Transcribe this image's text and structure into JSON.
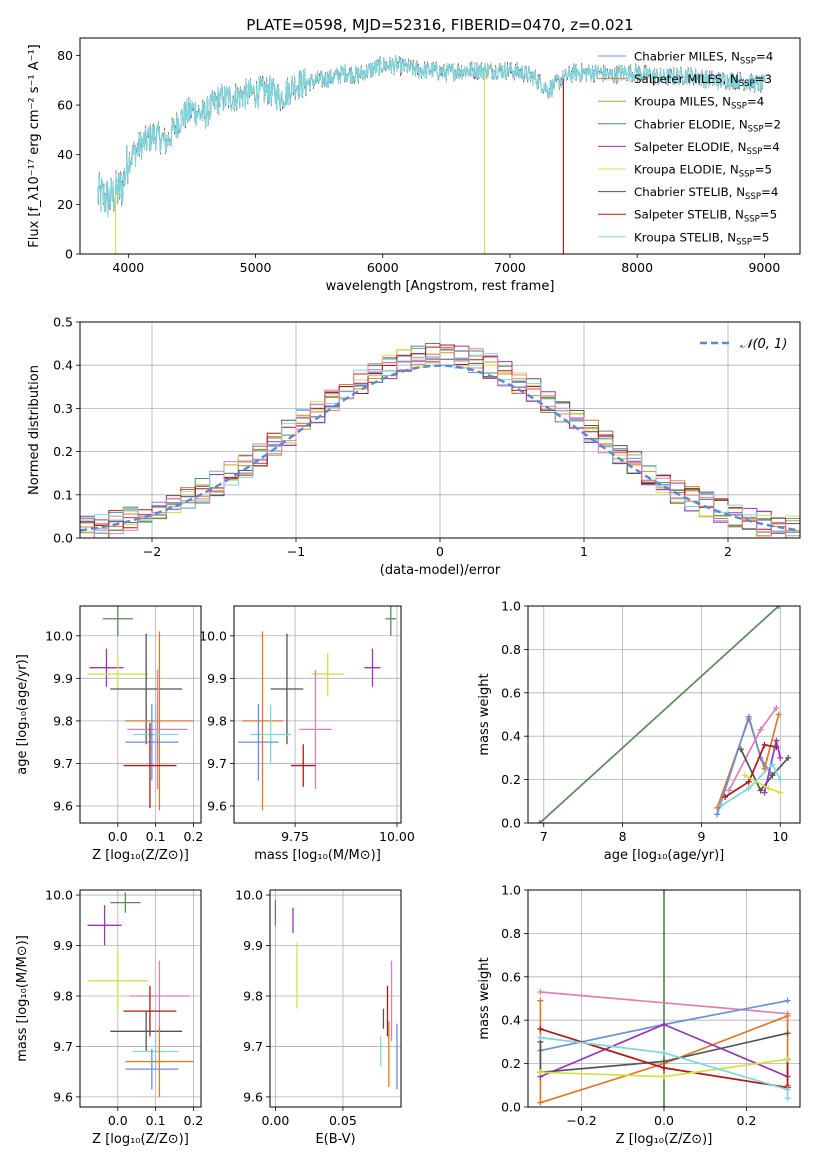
{
  "figure_title": "PLATE=0598, MJD=52316, FIBERID=0470, z=0.021",
  "colors": {
    "Chabrier MILES": "#6a8fd9",
    "Salpeter MILES": "#e07a26",
    "Kroupa MILES": "#c89a3a",
    "Chabrier ELODIE": "#5a8a5a",
    "Salpeter ELODIE": "#9b35b8",
    "Kroupa ELODIE": "#d4e04a",
    "Chabrier STELIB": "#555555",
    "Salpeter STELIB": "#b01818",
    "Kroupa STELIB": "#7fd6dc",
    "pink": "#e07fb0"
  },
  "chart_data": [
    {
      "id": "spectrum",
      "type": "line",
      "xlabel": "wavelength [Angstrom, rest frame]",
      "ylabel": "Flux [f_λ10⁻¹⁷ erg cm⁻² s⁻¹ A⁻¹]",
      "xlim": [
        3620,
        9280
      ],
      "ylim": [
        0,
        87
      ],
      "xticks": [
        4000,
        5000,
        6000,
        7000,
        8000,
        9000
      ],
      "yticks": [
        0,
        20,
        40,
        60,
        80
      ],
      "legend_position": "top-right",
      "legend": [
        {
          "name": "Chabrier MILES, N_SSP=4",
          "base": "Chabrier MILES, N",
          "sub": "SSP",
          "tail": "=4"
        },
        {
          "name": "Salpeter MILES, N_SSP=3",
          "base": "Salpeter MILES, N",
          "sub": "SSP",
          "tail": "=3"
        },
        {
          "name": "Kroupa MILES, N_SSP=4",
          "base": "Kroupa MILES, N",
          "sub": "SSP",
          "tail": "=4"
        },
        {
          "name": "Chabrier ELODIE, N_SSP=2",
          "base": "Chabrier ELODIE, N",
          "sub": "SSP",
          "tail": "=2"
        },
        {
          "name": "Salpeter ELODIE, N_SSP=4",
          "base": "Salpeter ELODIE, N",
          "sub": "SSP",
          "tail": "=4"
        },
        {
          "name": "Kroupa ELODIE, N_SSP=5",
          "base": "Kroupa ELODIE, N",
          "sub": "SSP",
          "tail": "=5"
        },
        {
          "name": "Chabrier STELIB, N_SSP=4",
          "base": "Chabrier STELIB, N",
          "sub": "SSP",
          "tail": "=4"
        },
        {
          "name": "Salpeter STELIB, N_SSP=5",
          "base": "Salpeter STELIB, N",
          "sub": "SSP",
          "tail": "=5"
        },
        {
          "name": "Kroupa STELIB, N_SSP=5",
          "base": "Kroupa STELIB, N",
          "sub": "SSP",
          "tail": "=5"
        }
      ],
      "continuum": {
        "x": [
          3760,
          3850,
          3950,
          4000,
          4100,
          4200,
          4300,
          4400,
          4500,
          4600,
          4700,
          4800,
          4900,
          5000,
          5100,
          5200,
          5300,
          5400,
          5500,
          5600,
          5700,
          5800,
          5900,
          6000,
          6100,
          6200,
          6300,
          6400,
          6500,
          6600,
          6700,
          6800,
          6900,
          7000,
          7100,
          7200,
          7300,
          7400,
          7500,
          7600,
          7700,
          7800,
          7900,
          8000,
          8200,
          8400,
          8600,
          8800,
          9000
        ],
        "y": [
          24,
          22,
          27,
          38,
          44,
          48,
          45,
          54,
          58,
          56,
          62,
          63,
          64,
          65,
          66,
          63,
          68,
          69,
          70,
          71,
          73,
          72,
          74,
          76,
          76,
          75,
          74,
          74,
          73,
          74,
          74,
          74,
          74,
          74,
          73,
          71,
          66,
          70,
          73,
          73,
          73,
          72,
          73,
          73,
          71,
          72,
          70,
          70,
          68
        ]
      },
      "spectrum_x_range": [
        3760,
        9010
      ],
      "dropouts": [
        {
          "x": 3900,
          "bottom": 0,
          "color": "Kroupa ELODIE"
        },
        {
          "x": 6800,
          "bottom": 0,
          "color": "Kroupa ELODIE"
        },
        {
          "x": 7420,
          "bottom": 0,
          "color": "Salpeter STELIB"
        }
      ]
    },
    {
      "id": "residuals",
      "type": "area",
      "xlabel": "(data-model)/error",
      "ylabel": "Normed distribution",
      "xlim": [
        -2.5,
        2.5
      ],
      "ylim": [
        0,
        0.5
      ],
      "xticks": [
        -2,
        -1,
        0,
        1,
        2
      ],
      "yticks": [
        0.0,
        0.1,
        0.2,
        0.3,
        0.4,
        0.5
      ],
      "grid": true,
      "bin_width": 0.1,
      "legend_label": "𝒩(0, 1)",
      "legend_position": "top-right"
    },
    {
      "id": "age_vs_Z",
      "type": "scatter",
      "xlabel": "Z [log₁₀(Z/Z⊙)]",
      "ylabel": "age  [log₁₀(age/yr)]",
      "xlim": [
        -0.1,
        0.22
      ],
      "ylim": [
        9.56,
        10.07
      ],
      "xticks": [
        0.0,
        0.1,
        0.2
      ],
      "yticks": [
        9.6,
        9.7,
        9.8,
        9.9,
        10.0
      ],
      "grid": true,
      "points": [
        {
          "color": "Chabrier ELODIE",
          "x": 0.0,
          "xerr": 0.04,
          "y": 10.04,
          "yerr": 0.04
        },
        {
          "color": "Salpeter ELODIE",
          "x": -0.03,
          "xerr": 0.045,
          "y": 9.925,
          "yerr": 0.045
        },
        {
          "color": "Kroupa ELODIE",
          "x": 0.0,
          "xerr": 0.08,
          "y": 9.91,
          "yerr": 0.04
        },
        {
          "color": "Chabrier STELIB",
          "x": 0.075,
          "xerr": 0.095,
          "y": 9.875,
          "yerr": 0.13
        },
        {
          "color": "Salpeter MILES",
          "x": 0.11,
          "xerr": 0.09,
          "y": 9.8,
          "yerr": 0.21
        },
        {
          "color": "pink",
          "x": 0.105,
          "xerr": 0.08,
          "y": 9.78,
          "yerr": 0.14
        },
        {
          "color": "Kroupa STELIB",
          "x": 0.1,
          "xerr": 0.06,
          "y": 9.768,
          "yerr": 0.07
        },
        {
          "color": "Chabrier MILES",
          "x": 0.09,
          "xerr": 0.07,
          "y": 9.75,
          "yerr": 0.09
        },
        {
          "color": "Salpeter STELIB",
          "x": 0.085,
          "xerr": 0.07,
          "y": 9.695,
          "yerr": 0.1
        }
      ]
    },
    {
      "id": "age_vs_mass",
      "type": "scatter",
      "xlabel": "mass [log₁₀(M/M⊙)]",
      "ylabel": "",
      "xlim": [
        9.6,
        10.01
      ],
      "ylim": [
        9.56,
        10.07
      ],
      "xticks": [
        9.75,
        10.0
      ],
      "yticks": [
        9.6,
        9.7,
        9.8,
        9.9,
        10.0
      ],
      "grid": true,
      "points": [
        {
          "color": "Chabrier ELODIE",
          "x": 9.985,
          "xerr": 0.013,
          "y": 10.04,
          "yerr": 0.04
        },
        {
          "color": "Salpeter ELODIE",
          "x": 9.94,
          "xerr": 0.02,
          "y": 9.925,
          "yerr": 0.045
        },
        {
          "color": "Kroupa ELODIE",
          "x": 9.83,
          "xerr": 0.04,
          "y": 9.91,
          "yerr": 0.05
        },
        {
          "color": "Chabrier STELIB",
          "x": 9.73,
          "xerr": 0.04,
          "y": 9.875,
          "yerr": 0.13
        },
        {
          "color": "Salpeter MILES",
          "x": 9.67,
          "xerr": 0.05,
          "y": 9.8,
          "yerr": 0.21
        },
        {
          "color": "pink",
          "x": 9.8,
          "xerr": 0.04,
          "y": 9.78,
          "yerr": 0.14
        },
        {
          "color": "Kroupa STELIB",
          "x": 9.69,
          "xerr": 0.05,
          "y": 9.768,
          "yerr": 0.07
        },
        {
          "color": "Chabrier MILES",
          "x": 9.66,
          "xerr": 0.05,
          "y": 9.75,
          "yerr": 0.09
        },
        {
          "color": "Salpeter STELIB",
          "x": 9.77,
          "xerr": 0.03,
          "y": 9.695,
          "yerr": 0.05
        }
      ]
    },
    {
      "id": "mass_weight_vs_age",
      "type": "line",
      "xlabel": "age  [log₁₀(age/yr)]",
      "ylabel": "mass weight",
      "xlim": [
        6.8,
        10.25
      ],
      "ylim": [
        0,
        1
      ],
      "xticks": [
        7,
        8,
        9,
        10
      ],
      "yticks": [
        0.0,
        0.2,
        0.4,
        0.6,
        0.8,
        1.0
      ],
      "grid": true,
      "series": [
        {
          "color": "Chabrier ELODIE",
          "x": [
            6.95,
            9.98
          ],
          "y": [
            0.0,
            1.0
          ]
        },
        {
          "color": "Salpeter MILES",
          "x": [
            9.2,
            9.6,
            9.8,
            9.98
          ],
          "y": [
            0.07,
            0.48,
            0.25,
            0.5
          ]
        },
        {
          "color": "Chabrier MILES",
          "x": [
            9.2,
            9.6,
            9.75,
            9.9
          ],
          "y": [
            0.04,
            0.49,
            0.3,
            0.22
          ]
        },
        {
          "color": "pink",
          "x": [
            9.35,
            9.75,
            9.95
          ],
          "y": [
            0.15,
            0.43,
            0.53
          ]
        },
        {
          "color": "Chabrier STELIB",
          "x": [
            9.5,
            9.75,
            9.9,
            10.1
          ],
          "y": [
            0.34,
            0.15,
            0.22,
            0.3
          ]
        },
        {
          "color": "Salpeter STELIB",
          "x": [
            9.3,
            9.6,
            9.8,
            9.95
          ],
          "y": [
            0.12,
            0.19,
            0.36,
            0.35
          ]
        },
        {
          "color": "Salpeter ELODIE",
          "x": [
            9.8,
            9.95,
            10.0
          ],
          "y": [
            0.14,
            0.38,
            0.3
          ]
        },
        {
          "color": "Kroupa ELODIE",
          "x": [
            9.55,
            9.85,
            10.0
          ],
          "y": [
            0.22,
            0.16,
            0.14
          ]
        },
        {
          "color": "Kroupa STELIB",
          "x": [
            9.25,
            9.6,
            9.9,
            10.0
          ],
          "y": [
            0.08,
            0.16,
            0.27,
            0.2
          ]
        }
      ]
    },
    {
      "id": "mass_vs_Z",
      "type": "scatter",
      "xlabel": "Z [log₁₀(Z/Z⊙)]",
      "ylabel": "mass [log₁₀(M/M⊙)]",
      "xlim": [
        -0.1,
        0.22
      ],
      "ylim": [
        9.58,
        10.01
      ],
      "xticks": [
        0.0,
        0.1,
        0.2
      ],
      "yticks": [
        9.6,
        9.7,
        9.8,
        9.9,
        10.0
      ],
      "grid": true,
      "points": [
        {
          "color": "Chabrier ELODIE",
          "x": 0.02,
          "xerr": 0.04,
          "y": 9.985,
          "yerr": 0.02
        },
        {
          "color": "Salpeter ELODIE",
          "x": -0.035,
          "xerr": 0.045,
          "y": 9.94,
          "yerr": 0.04
        },
        {
          "color": "Kroupa ELODIE",
          "x": 0.0,
          "xerr": 0.08,
          "y": 9.83,
          "yerr": 0.06
        },
        {
          "color": "pink",
          "x": 0.11,
          "xerr": 0.08,
          "y": 9.8,
          "yerr": 0.07
        },
        {
          "color": "Salpeter STELIB",
          "x": 0.085,
          "xerr": 0.07,
          "y": 9.77,
          "yerr": 0.05
        },
        {
          "color": "Chabrier STELIB",
          "x": 0.075,
          "xerr": 0.095,
          "y": 9.73,
          "yerr": 0.04
        },
        {
          "color": "Kroupa STELIB",
          "x": 0.1,
          "xerr": 0.06,
          "y": 9.69,
          "yerr": 0.04
        },
        {
          "color": "Salpeter MILES",
          "x": 0.11,
          "xerr": 0.09,
          "y": 9.67,
          "yerr": 0.07
        },
        {
          "color": "Chabrier MILES",
          "x": 0.09,
          "xerr": 0.07,
          "y": 9.655,
          "yerr": 0.04
        }
      ]
    },
    {
      "id": "mass_vs_EBV",
      "type": "scatter",
      "xlabel": "E(B-V)",
      "ylabel": "",
      "xlim": [
        -0.004,
        0.093
      ],
      "ylim": [
        9.58,
        10.01
      ],
      "xticks": [
        0.0,
        0.05
      ],
      "yticks": [
        9.6,
        9.7,
        9.8,
        9.9,
        10.0
      ],
      "grid": true,
      "points": [
        {
          "color": "Chabrier ELODIE",
          "x": 0.0,
          "xerr": 0,
          "y": 9.965,
          "yerr": 0.025
        },
        {
          "color": "Salpeter ELODIE",
          "x": 0.013,
          "xerr": 0,
          "y": 9.95,
          "yerr": 0.025
        },
        {
          "color": "Kroupa ELODIE",
          "x": 0.016,
          "xerr": 0,
          "y": 9.84,
          "yerr": 0.065
        },
        {
          "color": "pink",
          "x": 0.086,
          "xerr": 0,
          "y": 9.79,
          "yerr": 0.08
        },
        {
          "color": "Salpeter STELIB",
          "x": 0.083,
          "xerr": 0,
          "y": 9.77,
          "yerr": 0.05
        },
        {
          "color": "Chabrier STELIB",
          "x": 0.08,
          "xerr": 0,
          "y": 9.755,
          "yerr": 0.02
        },
        {
          "color": "Kroupa STELIB",
          "x": 0.078,
          "xerr": 0,
          "y": 9.69,
          "yerr": 0.03
        },
        {
          "color": "Salpeter MILES",
          "x": 0.084,
          "xerr": 0,
          "y": 9.685,
          "yerr": 0.065
        },
        {
          "color": "Chabrier MILES",
          "x": 0.09,
          "xerr": 0,
          "y": 9.68,
          "yerr": 0.065
        }
      ]
    },
    {
      "id": "mass_weight_vs_Z",
      "type": "line",
      "xlabel": "Z [log₁₀(Z/Z⊙)]",
      "ylabel": "mass weight",
      "xlim": [
        -0.33,
        0.33
      ],
      "ylim": [
        0,
        1
      ],
      "xticks": [
        -0.2,
        0.0,
        0.2
      ],
      "yticks": [
        0.0,
        0.2,
        0.4,
        0.6,
        0.8,
        1.0
      ],
      "grid": true,
      "series": [
        {
          "color": "Chabrier ELODIE",
          "x": [
            0.0,
            0.0
          ],
          "y": [
            0.0,
            1.0
          ]
        },
        {
          "color": "pink",
          "x": [
            -0.3,
            0.3
          ],
          "y": [
            0.53,
            0.43
          ]
        },
        {
          "color": "Chabrier MILES",
          "x": [
            -0.3,
            0.0,
            0.3
          ],
          "y": [
            0.26,
            0.38,
            0.49
          ]
        },
        {
          "color": "Salpeter MILES",
          "x": [
            -0.3,
            -0.3,
            0.0,
            0.3,
            0.3
          ],
          "y": [
            0.49,
            0.02,
            0.2,
            0.42,
            0.1
          ]
        },
        {
          "color": "Salpeter ELODIE",
          "x": [
            -0.3,
            0.0,
            0.3,
            0.3
          ],
          "y": [
            0.14,
            0.38,
            0.14,
            0.22
          ]
        },
        {
          "color": "Chabrier STELIB",
          "x": [
            -0.3,
            -0.3,
            0.0,
            0.3
          ],
          "y": [
            0.3,
            0.16,
            0.21,
            0.34
          ]
        },
        {
          "color": "Salpeter STELIB",
          "x": [
            -0.3,
            0.0,
            0.3,
            0.3
          ],
          "y": [
            0.36,
            0.18,
            0.09,
            0.22
          ]
        },
        {
          "color": "Kroupa ELODIE",
          "x": [
            -0.3,
            0.0,
            0.3
          ],
          "y": [
            0.16,
            0.14,
            0.22
          ]
        },
        {
          "color": "Kroupa STELIB",
          "x": [
            -0.3,
            0.0,
            0.3,
            0.3
          ],
          "y": [
            0.32,
            0.25,
            0.08,
            0.04
          ]
        }
      ]
    }
  ]
}
